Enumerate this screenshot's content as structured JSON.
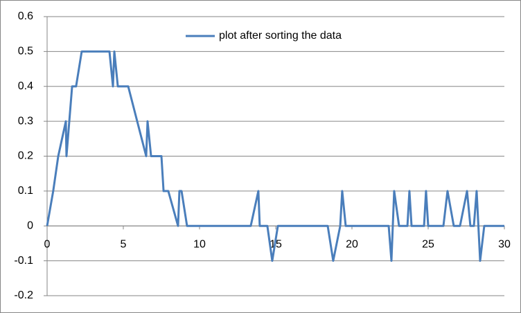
{
  "chart_data": {
    "type": "line",
    "x": [
      0,
      0.4,
      0.73,
      1.23,
      1.27,
      1.64,
      1.9,
      2.27,
      4.09,
      4.32,
      4.41,
      4.64,
      5.32,
      6.5,
      6.59,
      6.82,
      7.5,
      7.64,
      7.95,
      8.59,
      8.68,
      8.82,
      9.18,
      13.36,
      13.86,
      13.95,
      14.45,
      14.77,
      15.14,
      18.41,
      18.77,
      19.23,
      19.36,
      19.59,
      22.41,
      22.59,
      22.77,
      23.09,
      23.64,
      23.77,
      23.91,
      24.73,
      24.86,
      25,
      26,
      26.27,
      26.68,
      27.09,
      27.55,
      27.77,
      28,
      28.18,
      28.41,
      28.68,
      30
    ],
    "series": [
      {
        "name": "plot after sorting the data",
        "color": "#4a7ebb",
        "values": [
          0,
          0.1,
          0.2,
          0.3,
          0.2,
          0.4,
          0.4,
          0.5,
          0.5,
          0.4,
          0.5,
          0.4,
          0.4,
          0.2,
          0.3,
          0.2,
          0.2,
          0.1,
          0.1,
          0,
          0.1,
          0.1,
          0,
          0,
          0.1,
          0,
          0,
          -0.1,
          0,
          0,
          -0.1,
          0,
          0.1,
          0,
          0,
          -0.1,
          0.1,
          0,
          0,
          0.1,
          0,
          0,
          0.1,
          0,
          0,
          0.1,
          0,
          0,
          0.1,
          0,
          0,
          0.1,
          -0.1,
          0,
          0
        ]
      }
    ],
    "xlim": [
      0,
      30
    ],
    "xticks": [
      0,
      5,
      10,
      15,
      20,
      25,
      30
    ],
    "ylim": [
      -0.2,
      0.6
    ],
    "yticks": [
      -0.2,
      -0.1,
      0,
      0.1,
      0.2,
      0.3,
      0.4,
      0.5,
      0.6
    ],
    "grid": true
  }
}
